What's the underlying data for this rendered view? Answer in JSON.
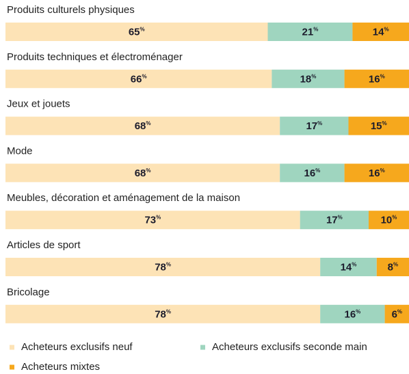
{
  "chart_data": {
    "type": "bar",
    "orientation": "horizontal",
    "stacked": true,
    "categories": [
      "Produits culturels physiques",
      "Produits techniques et électroménager",
      "Jeux et jouets",
      "Mode",
      "Meubles, décoration et aménagement de la maison",
      "Articles de sport",
      "Bricolage"
    ],
    "series": [
      {
        "name": "Acheteurs exclusifs neuf",
        "color": "#fde3b6",
        "values": [
          65,
          66,
          68,
          68,
          73,
          78,
          78
        ],
        "value_labels": [
          "65%",
          "66%",
          "68%",
          "68%",
          "73%",
          "78%",
          "78%"
        ]
      },
      {
        "name": "Acheteurs exclusifs seconde main",
        "color": "#9fd5bf",
        "values": [
          21,
          18,
          17,
          16,
          17,
          14,
          16
        ],
        "value_labels": [
          "21%",
          "18%",
          "17%",
          "16%",
          "17%",
          "14%",
          "16%"
        ]
      },
      {
        "name": "Acheteurs  mixtes",
        "color": "#f6a81d",
        "values": [
          14,
          16,
          15,
          16,
          10,
          8,
          6
        ],
        "value_labels": [
          "14%",
          "16%",
          "15%",
          "16%",
          "10%",
          "8%",
          "6%"
        ]
      }
    ],
    "legend": "bottom"
  }
}
